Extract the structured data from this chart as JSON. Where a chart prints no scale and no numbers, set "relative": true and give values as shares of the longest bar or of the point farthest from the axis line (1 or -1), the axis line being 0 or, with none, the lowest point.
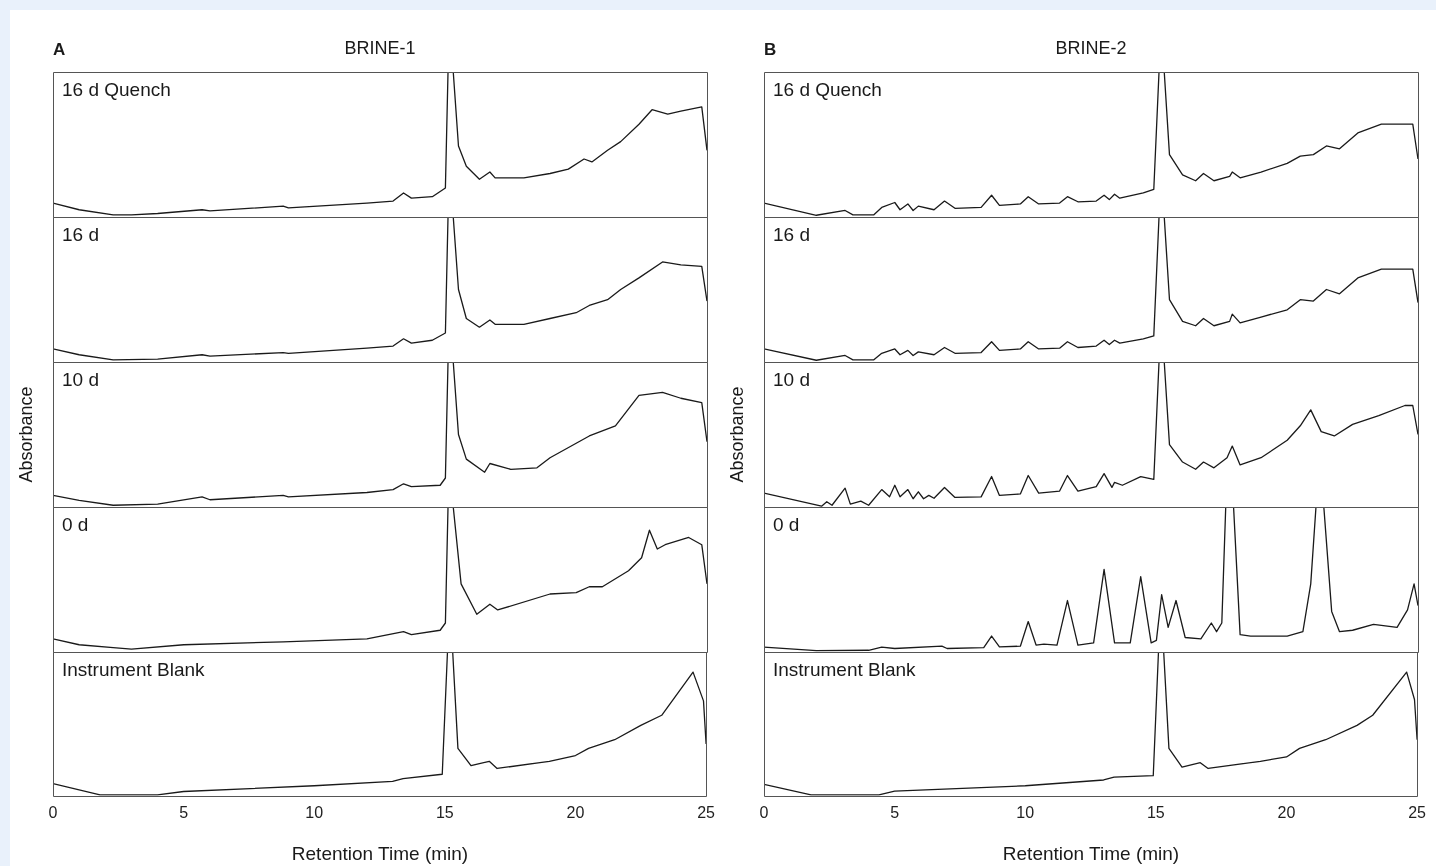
{
  "chart_data": [
    {
      "type": "line",
      "title": "BRINE-1",
      "annotations": [
        "A",
        "16 d Quench"
      ],
      "relative": true,
      "xlim": [
        0,
        25
      ],
      "xticks": [
        0,
        5,
        10,
        15,
        20,
        25
      ],
      "tick_labels": false,
      "marker": "none",
      "series": [
        {
          "color": "#1a1a1a",
          "x": [
            0,
            1,
            2.3,
            3,
            4,
            5.7,
            6,
            8.8,
            9,
            12,
            13,
            13.4,
            13.7,
            14.5,
            15.0,
            15.1,
            15.3,
            15.5,
            15.8,
            16.3,
            16.7,
            16.9,
            18,
            19,
            19.7,
            20.3,
            20.6,
            21.2,
            21.7,
            22.4,
            22.9,
            23.5,
            24,
            24.8,
            25
          ],
          "values": [
            0.096,
            0.05,
            0.015,
            0.015,
            0.024,
            0.05,
            0.042,
            0.075,
            0.063,
            0.096,
            0.11,
            0.166,
            0.13,
            0.14,
            0.2,
            1,
            1,
            0.49,
            0.35,
            0.26,
            0.31,
            0.27,
            0.27,
            0.3,
            0.33,
            0.4,
            0.38,
            0.46,
            0.52,
            0.64,
            0.74,
            0.71,
            0.73,
            0.76,
            0.46
          ]
        }
      ]
    },
    {
      "type": "line",
      "annotations": [
        "16 d"
      ],
      "relative": true,
      "xlim": [
        0,
        25
      ],
      "xticks": [
        0,
        5,
        10,
        15,
        20,
        25
      ],
      "tick_labels": false,
      "marker": "none",
      "series": [
        {
          "color": "#1a1a1a",
          "x": [
            0,
            1,
            2.3,
            4,
            5.7,
            6,
            8.8,
            9,
            12,
            13,
            13.4,
            13.7,
            14.5,
            15.0,
            15.1,
            15.3,
            15.5,
            15.8,
            16.3,
            16.7,
            16.9,
            18,
            19,
            20,
            20.5,
            21.2,
            21.7,
            22.4,
            23.3,
            24,
            24.8,
            25
          ],
          "values": [
            0.09,
            0.05,
            0.015,
            0.02,
            0.05,
            0.04,
            0.065,
            0.06,
            0.095,
            0.11,
            0.16,
            0.13,
            0.15,
            0.2,
            1,
            1,
            0.5,
            0.3,
            0.24,
            0.29,
            0.26,
            0.26,
            0.3,
            0.34,
            0.39,
            0.43,
            0.5,
            0.58,
            0.69,
            0.67,
            0.66,
            0.42
          ]
        }
      ]
    },
    {
      "type": "line",
      "ylabel": "Absorbance",
      "annotations": [
        "10 d"
      ],
      "relative": true,
      "xlim": [
        0,
        25
      ],
      "xticks": [
        0,
        5,
        10,
        15,
        20,
        25
      ],
      "tick_labels": false,
      "marker": "none",
      "series": [
        {
          "color": "#1a1a1a",
          "x": [
            0,
            1,
            2.3,
            4,
            5.7,
            6,
            8.8,
            9,
            12,
            13,
            13.4,
            13.7,
            14.8,
            15.0,
            15.1,
            15.3,
            15.5,
            15.8,
            16.5,
            16.7,
            17.5,
            18.5,
            19,
            20,
            20.5,
            21.5,
            22.4,
            23.3,
            24,
            24.8,
            25
          ],
          "values": [
            0.08,
            0.045,
            0.012,
            0.02,
            0.07,
            0.05,
            0.08,
            0.07,
            0.1,
            0.12,
            0.16,
            0.14,
            0.15,
            0.2,
            1,
            1,
            0.5,
            0.33,
            0.24,
            0.3,
            0.26,
            0.27,
            0.34,
            0.44,
            0.49,
            0.56,
            0.77,
            0.79,
            0.75,
            0.72,
            0.45
          ]
        }
      ]
    },
    {
      "type": "line",
      "annotations": [
        "0 d"
      ],
      "relative": true,
      "xlim": [
        0,
        25
      ],
      "xticks": [
        0,
        5,
        10,
        15,
        20,
        25
      ],
      "tick_labels": false,
      "marker": "none",
      "series": [
        {
          "color": "#1a1a1a",
          "x": [
            0,
            1,
            2.3,
            3,
            5,
            8.8,
            12,
            13.4,
            13.7,
            14.8,
            15.0,
            15.1,
            15.3,
            15.6,
            16.2,
            16.7,
            17,
            19,
            20,
            20.5,
            21,
            22,
            22.5,
            22.8,
            23.1,
            23.4,
            24.3,
            24.8,
            25
          ],
          "values": [
            0.09,
            0.05,
            0.03,
            0.02,
            0.05,
            0.07,
            0.09,
            0.14,
            0.12,
            0.15,
            0.2,
            1,
            1,
            0.47,
            0.26,
            0.33,
            0.29,
            0.4,
            0.41,
            0.45,
            0.45,
            0.56,
            0.65,
            0.84,
            0.71,
            0.74,
            0.79,
            0.74,
            0.47
          ]
        }
      ]
    },
    {
      "type": "line",
      "xlabel": "Retention Time (min)",
      "annotations": [
        "Instrument Blank"
      ],
      "relative": true,
      "xlim": [
        0,
        25
      ],
      "xticks": [
        0,
        5,
        10,
        15,
        20,
        25
      ],
      "tick_labels": "x",
      "marker": "none",
      "series": [
        {
          "color": "#1a1a1a",
          "x": [
            0,
            1.8,
            4,
            5,
            10,
            13,
            13.4,
            14.9,
            15.1,
            15.3,
            15.5,
            16,
            16.7,
            17,
            19,
            20,
            20.5,
            21.5,
            22.5,
            23.3,
            24.5,
            24.9,
            25
          ],
          "values": [
            0.085,
            0.006,
            0.006,
            0.03,
            0.07,
            0.1,
            0.12,
            0.15,
            1,
            1,
            0.33,
            0.21,
            0.24,
            0.19,
            0.24,
            0.28,
            0.33,
            0.39,
            0.49,
            0.56,
            0.86,
            0.66,
            0.36
          ]
        }
      ]
    },
    {
      "type": "line",
      "title": "BRINE-2",
      "annotations": [
        "B",
        "16 d Quench"
      ],
      "relative": true,
      "xlim": [
        0,
        25
      ],
      "xticks": [
        0,
        5,
        10,
        15,
        20,
        25
      ],
      "tick_labels": false,
      "marker": "none",
      "series": [
        {
          "color": "#1a1a1a",
          "x": [
            0,
            2,
            3.1,
            3.4,
            4.2,
            4.5,
            5.0,
            5.2,
            5.5,
            5.7,
            5.9,
            6.5,
            6.9,
            7.3,
            8.3,
            8.7,
            9.0,
            9.8,
            10.1,
            10.5,
            11.3,
            11.6,
            12,
            12.7,
            13.0,
            13.2,
            13.4,
            13.6,
            14.5,
            14.9,
            15.1,
            15.3,
            15.5,
            16,
            16.5,
            16.8,
            17.2,
            17.8,
            17.9,
            18.2,
            19,
            20,
            20.5,
            21,
            21.5,
            22,
            22.7,
            23.6,
            24.8,
            25
          ],
          "values": [
            0.096,
            0.012,
            0.045,
            0.015,
            0.015,
            0.066,
            0.1,
            0.05,
            0.09,
            0.045,
            0.075,
            0.05,
            0.11,
            0.06,
            0.066,
            0.15,
            0.08,
            0.09,
            0.14,
            0.09,
            0.096,
            0.14,
            0.105,
            0.11,
            0.15,
            0.12,
            0.157,
            0.13,
            0.166,
            0.19,
            1,
            1,
            0.43,
            0.29,
            0.25,
            0.3,
            0.25,
            0.28,
            0.31,
            0.27,
            0.31,
            0.37,
            0.42,
            0.43,
            0.49,
            0.47,
            0.58,
            0.64,
            0.64,
            0.4
          ]
        }
      ]
    },
    {
      "type": "line",
      "annotations": [
        "16 d"
      ],
      "relative": true,
      "xlim": [
        0,
        25
      ],
      "xticks": [
        0,
        5,
        10,
        15,
        20,
        25
      ],
      "tick_labels": false,
      "marker": "none",
      "series": [
        {
          "color": "#1a1a1a",
          "x": [
            0,
            2,
            3.1,
            3.4,
            4.2,
            4.5,
            5.0,
            5.2,
            5.5,
            5.7,
            5.9,
            6.5,
            6.9,
            7.3,
            8.3,
            8.7,
            9.0,
            9.8,
            10.1,
            10.5,
            11.3,
            11.6,
            12,
            12.7,
            13.0,
            13.2,
            13.4,
            13.6,
            14.5,
            14.9,
            15.1,
            15.3,
            15.5,
            16,
            16.5,
            16.8,
            17.2,
            17.8,
            17.9,
            18.2,
            19,
            20,
            20.5,
            21,
            21.5,
            22,
            22.7,
            23.6,
            24.8,
            25
          ],
          "values": [
            0.09,
            0.012,
            0.045,
            0.015,
            0.015,
            0.06,
            0.09,
            0.05,
            0.08,
            0.045,
            0.07,
            0.05,
            0.1,
            0.06,
            0.065,
            0.14,
            0.08,
            0.09,
            0.14,
            0.09,
            0.095,
            0.14,
            0.1,
            0.11,
            0.15,
            0.12,
            0.15,
            0.13,
            0.16,
            0.18,
            1,
            1,
            0.43,
            0.28,
            0.25,
            0.3,
            0.25,
            0.28,
            0.33,
            0.27,
            0.31,
            0.36,
            0.43,
            0.42,
            0.5,
            0.47,
            0.58,
            0.64,
            0.64,
            0.41
          ]
        }
      ]
    },
    {
      "type": "line",
      "ylabel": "Absorbance",
      "annotations": [
        "10 d"
      ],
      "relative": true,
      "xlim": [
        0,
        25
      ],
      "xticks": [
        0,
        5,
        10,
        15,
        20,
        25
      ],
      "tick_labels": false,
      "marker": "none",
      "series": [
        {
          "color": "#1a1a1a",
          "x": [
            0,
            2.2,
            2.4,
            2.6,
            3.1,
            3.3,
            3.7,
            4,
            4.5,
            4.8,
            5.0,
            5.2,
            5.5,
            5.7,
            5.9,
            6.1,
            6.3,
            6.5,
            6.9,
            7.3,
            8.3,
            8.7,
            9.0,
            9.8,
            10.1,
            10.5,
            11.3,
            11.6,
            12,
            12.7,
            13.0,
            13.3,
            13.4,
            13.7,
            14.4,
            14.9,
            15.1,
            15.3,
            15.5,
            16,
            16.5,
            16.8,
            17.2,
            17.7,
            17.9,
            18.2,
            19,
            20,
            20.5,
            20.9,
            21.3,
            21.8,
            22.5,
            23.5,
            24.5,
            24.8,
            25
          ],
          "values": [
            0.096,
            0.006,
            0.036,
            0.012,
            0.13,
            0.02,
            0.04,
            0.012,
            0.12,
            0.07,
            0.15,
            0.07,
            0.12,
            0.057,
            0.105,
            0.057,
            0.08,
            0.06,
            0.135,
            0.066,
            0.07,
            0.21,
            0.08,
            0.09,
            0.217,
            0.096,
            0.11,
            0.217,
            0.11,
            0.14,
            0.23,
            0.135,
            0.17,
            0.15,
            0.21,
            0.19,
            1,
            1,
            0.43,
            0.31,
            0.26,
            0.31,
            0.27,
            0.34,
            0.42,
            0.29,
            0.34,
            0.46,
            0.56,
            0.67,
            0.52,
            0.49,
            0.57,
            0.63,
            0.7,
            0.7,
            0.5
          ]
        }
      ]
    },
    {
      "type": "line",
      "annotations": [
        "0 d"
      ],
      "relative": true,
      "xlim": [
        0,
        25
      ],
      "xticks": [
        0,
        5,
        10,
        15,
        20,
        25
      ],
      "tick_labels": false,
      "marker": "none",
      "series": [
        {
          "color": "#1a1a1a",
          "x": [
            0,
            2,
            4,
            4.5,
            5,
            6.8,
            7,
            8.4,
            8.7,
            9.0,
            9.8,
            10.1,
            10.4,
            10.7,
            11.2,
            11.6,
            12.0,
            12.6,
            13.0,
            13.4,
            14.0,
            14.4,
            14.8,
            15.0,
            15.2,
            15.45,
            15.75,
            16.1,
            16.7,
            17.1,
            17.3,
            17.5,
            17.65,
            17.95,
            18.2,
            18.6,
            20,
            20.6,
            20.9,
            21.1,
            21.4,
            21.7,
            22,
            22.5,
            23.3,
            24.2,
            24.6,
            24.85,
            25
          ],
          "values": [
            0.033,
            0.01,
            0.012,
            0.033,
            0.024,
            0.04,
            0.024,
            0.03,
            0.11,
            0.036,
            0.04,
            0.21,
            0.048,
            0.054,
            0.048,
            0.355,
            0.048,
            0.063,
            0.57,
            0.063,
            0.063,
            0.52,
            0.063,
            0.08,
            0.395,
            0.17,
            0.355,
            0.1,
            0.09,
            0.2,
            0.14,
            0.2,
            1,
            1,
            0.12,
            0.11,
            0.11,
            0.14,
            0.47,
            1,
            1,
            0.28,
            0.14,
            0.15,
            0.19,
            0.17,
            0.29,
            0.47,
            0.32
          ]
        }
      ]
    },
    {
      "type": "line",
      "xlabel": "Retention Time (min)",
      "annotations": [
        "Instrument Blank"
      ],
      "relative": true,
      "xlim": [
        0,
        25
      ],
      "xticks": [
        0,
        5,
        10,
        15,
        20,
        25
      ],
      "tick_labels": "x",
      "marker": "none",
      "series": [
        {
          "color": "#1a1a1a",
          "x": [
            0,
            1.8,
            4.4,
            5,
            10,
            13,
            13.4,
            14.9,
            15.1,
            15.3,
            15.5,
            16,
            16.7,
            17,
            19,
            20,
            20.5,
            21.5,
            22.7,
            23.3,
            24.6,
            24.9,
            25
          ],
          "values": [
            0.08,
            0.006,
            0.006,
            0.033,
            0.07,
            0.11,
            0.13,
            0.14,
            1,
            1,
            0.33,
            0.2,
            0.23,
            0.19,
            0.24,
            0.27,
            0.33,
            0.39,
            0.49,
            0.56,
            0.86,
            0.67,
            0.39
          ]
        }
      ]
    }
  ]
}
